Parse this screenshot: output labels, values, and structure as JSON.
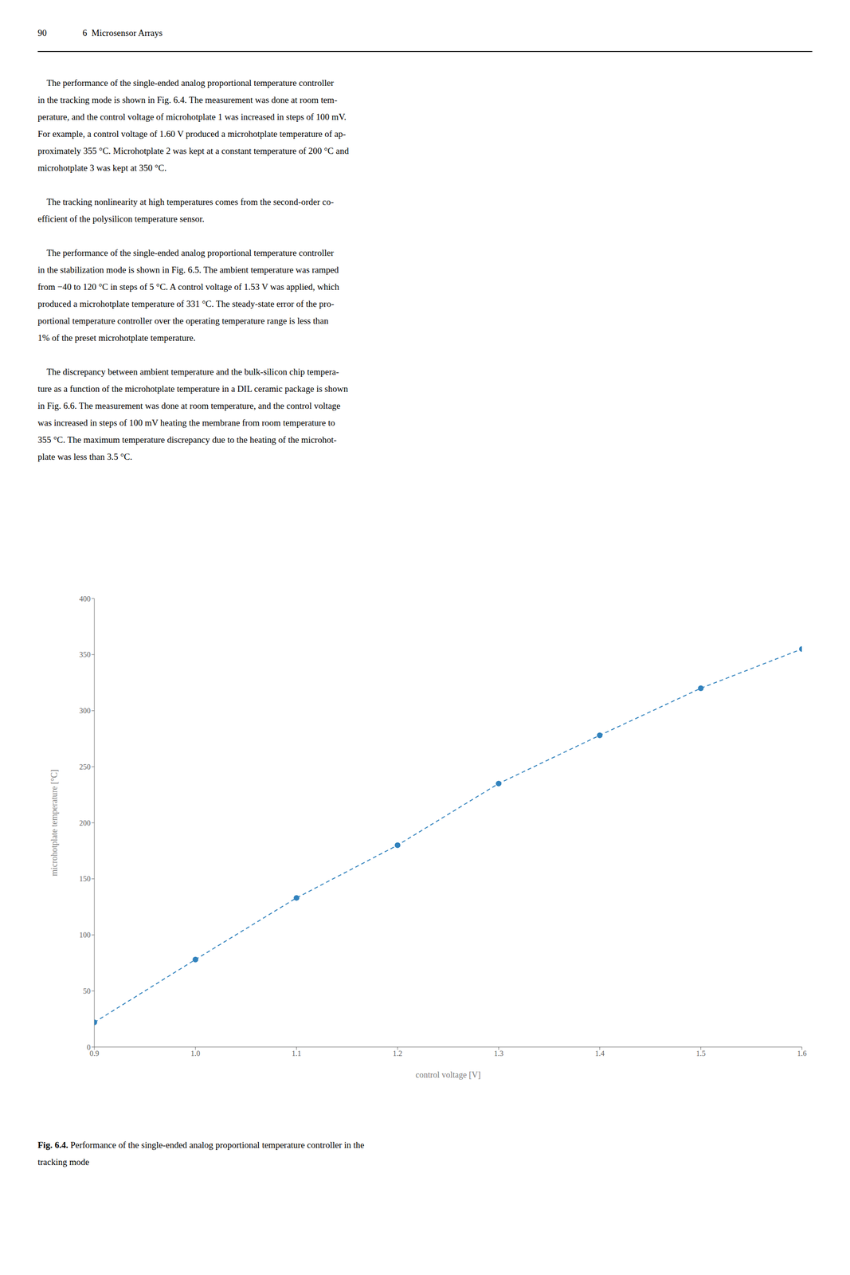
{
  "chart_data": {
    "type": "line",
    "x": [
      0.9,
      1.0,
      1.1,
      1.2,
      1.3,
      1.4,
      1.5,
      1.6
    ],
    "values": [
      22,
      78,
      133,
      180,
      235,
      278,
      320,
      355
    ],
    "xlim": [
      0.9,
      1.6
    ],
    "ylim": [
      0,
      400
    ],
    "xticks": [
      0.9,
      {
        "value": 1.0,
        "label": "1.0"
      },
      1.1,
      1.2,
      1.3,
      1.4,
      1.5,
      1.6
    ],
    "yticks": [
      0,
      50,
      100,
      150,
      200,
      250,
      300,
      350,
      400
    ],
    "xlabel": "control voltage [V]",
    "ylabel": "microhotplate temperature [°C]",
    "marker": "circle",
    "line_style": "dashed",
    "grid": false
  },
  "header_number": "90",
  "header_chapter": "6  Microsensor Arrays",
  "paragraphs": [
    "    The performance of the single-ended analog proportional temperature controller\nin the tracking mode is shown in Fig. 6.4. The measurement was done at room tem-\nperature, and the control voltage of microhotplate 1 was increased in steps of 100 mV.\nFor example, a control voltage of 1.60 V produced a microhotplate temperature of ap-\nproximately 355 °C. Microhotplate 2 was kept at a constant temperature of 200 °C and\nmicrohotplate 3 was kept at 350 °C.",
    "    The tracking nonlinearity at high temperatures comes from the second-order co-\nefficient of the polysilicon temperature sensor.",
    "    The performance of the single-ended analog proportional temperature controller\nin the stabilization mode is shown in Fig. 6.5. The ambient temperature was ramped\nfrom −40 to 120 °C in steps of 5 °C. A control voltage of 1.53 V was applied, which\nproduced a microhotplate temperature of 331 °C. The steady-state error of the pro-\nportional temperature controller over the operating temperature range is less than\n1% of the preset microhotplate temperature.",
    "    The discrepancy between ambient temperature and the bulk-silicon chip tempera-\nture as a function of the microhotplate temperature in a DIL ceramic package is shown\nin Fig. 6.6. The measurement was done at room temperature, and the control voltage\nwas increased in steps of 100 mV heating the membrane from room temperature to\n355 °C. The maximum temperature discrepancy due to the heating of the microhot-\nplate was less than 3.5 °C."
  ],
  "caption_bold": "Fig. 6.4.",
  "caption_rest": " Performance of the single-ended analog proportional temperature controller in the\ntracking mode"
}
